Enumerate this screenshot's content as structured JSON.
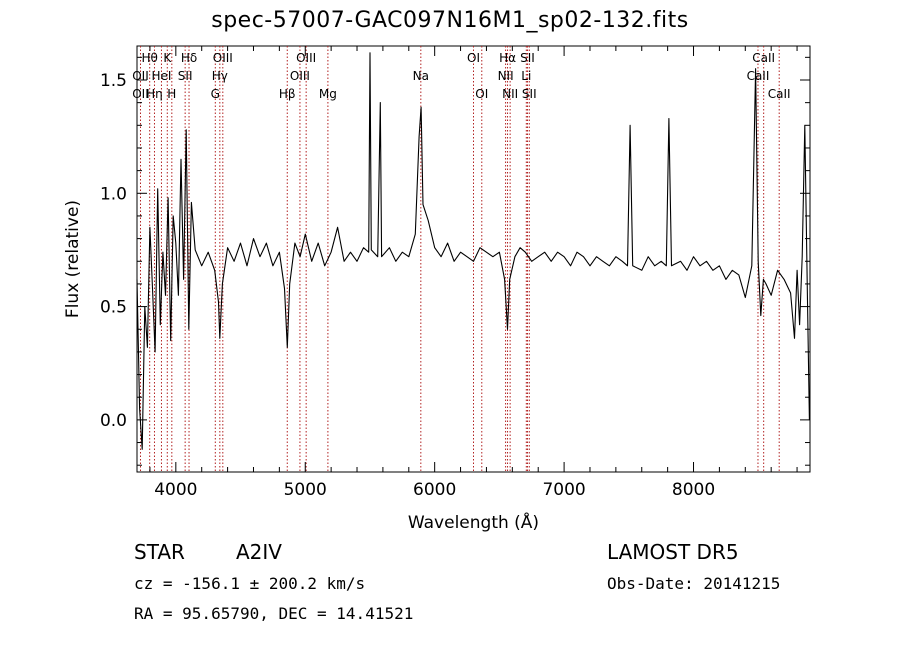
{
  "chart_data": {
    "type": "line",
    "title": "spec-57007-GAC097N16M1_sp02-132.fits",
    "xlabel": "Wavelength (Å)",
    "ylabel": "Flux (relative)",
    "xlim": [
      3700,
      8900
    ],
    "ylim": [
      -0.23,
      1.65
    ],
    "xticks": [
      4000,
      5000,
      6000,
      7000,
      8000
    ],
    "yticks": [
      0.0,
      0.5,
      1.0,
      1.5
    ],
    "xtick_labels": [
      "4000",
      "5000",
      "6000",
      "7000",
      "8000"
    ],
    "ytick_labels": [
      "0.0",
      "0.5",
      "1.0",
      "1.5"
    ],
    "grid": false,
    "series": [
      {
        "color": "#000000",
        "points": [
          [
            3700,
            0.62
          ],
          [
            3720,
            0.05
          ],
          [
            3740,
            -0.13
          ],
          [
            3760,
            0.5
          ],
          [
            3780,
            0.32
          ],
          [
            3800,
            0.85
          ],
          [
            3820,
            0.58
          ],
          [
            3840,
            0.3
          ],
          [
            3860,
            1.02
          ],
          [
            3880,
            0.42
          ],
          [
            3900,
            0.74
          ],
          [
            3920,
            0.55
          ],
          [
            3940,
            0.98
          ],
          [
            3960,
            0.35
          ],
          [
            3980,
            0.9
          ],
          [
            4000,
            0.78
          ],
          [
            4020,
            0.55
          ],
          [
            4040,
            1.15
          ],
          [
            4060,
            0.62
          ],
          [
            4080,
            1.28
          ],
          [
            4100,
            0.4
          ],
          [
            4120,
            0.96
          ],
          [
            4150,
            0.75
          ],
          [
            4200,
            0.68
          ],
          [
            4250,
            0.74
          ],
          [
            4300,
            0.66
          ],
          [
            4330,
            0.52
          ],
          [
            4340,
            0.36
          ],
          [
            4360,
            0.6
          ],
          [
            4400,
            0.76
          ],
          [
            4450,
            0.7
          ],
          [
            4500,
            0.78
          ],
          [
            4550,
            0.68
          ],
          [
            4600,
            0.8
          ],
          [
            4650,
            0.72
          ],
          [
            4700,
            0.78
          ],
          [
            4750,
            0.68
          ],
          [
            4800,
            0.74
          ],
          [
            4840,
            0.58
          ],
          [
            4861,
            0.32
          ],
          [
            4880,
            0.6
          ],
          [
            4920,
            0.78
          ],
          [
            4960,
            0.72
          ],
          [
            5000,
            0.82
          ],
          [
            5050,
            0.7
          ],
          [
            5100,
            0.78
          ],
          [
            5150,
            0.68
          ],
          [
            5200,
            0.74
          ],
          [
            5250,
            0.85
          ],
          [
            5300,
            0.7
          ],
          [
            5350,
            0.74
          ],
          [
            5400,
            0.7
          ],
          [
            5450,
            0.76
          ],
          [
            5490,
            0.74
          ],
          [
            5500,
            1.62
          ],
          [
            5510,
            0.75
          ],
          [
            5560,
            0.72
          ],
          [
            5580,
            1.4
          ],
          [
            5590,
            0.72
          ],
          [
            5650,
            0.76
          ],
          [
            5700,
            0.7
          ],
          [
            5750,
            0.74
          ],
          [
            5800,
            0.72
          ],
          [
            5850,
            0.82
          ],
          [
            5880,
            1.25
          ],
          [
            5895,
            1.38
          ],
          [
            5910,
            0.95
          ],
          [
            5950,
            0.88
          ],
          [
            6000,
            0.76
          ],
          [
            6050,
            0.72
          ],
          [
            6100,
            0.78
          ],
          [
            6150,
            0.7
          ],
          [
            6200,
            0.74
          ],
          [
            6250,
            0.72
          ],
          [
            6300,
            0.7
          ],
          [
            6350,
            0.76
          ],
          [
            6400,
            0.74
          ],
          [
            6450,
            0.72
          ],
          [
            6500,
            0.74
          ],
          [
            6540,
            0.62
          ],
          [
            6563,
            0.4
          ],
          [
            6580,
            0.62
          ],
          [
            6620,
            0.72
          ],
          [
            6660,
            0.76
          ],
          [
            6700,
            0.74
          ],
          [
            6750,
            0.7
          ],
          [
            6800,
            0.72
          ],
          [
            6850,
            0.74
          ],
          [
            6900,
            0.7
          ],
          [
            6950,
            0.74
          ],
          [
            7000,
            0.72
          ],
          [
            7050,
            0.68
          ],
          [
            7100,
            0.74
          ],
          [
            7150,
            0.72
          ],
          [
            7200,
            0.68
          ],
          [
            7250,
            0.72
          ],
          [
            7300,
            0.7
          ],
          [
            7350,
            0.68
          ],
          [
            7400,
            0.72
          ],
          [
            7450,
            0.7
          ],
          [
            7490,
            0.68
          ],
          [
            7510,
            1.3
          ],
          [
            7530,
            0.68
          ],
          [
            7600,
            0.66
          ],
          [
            7650,
            0.72
          ],
          [
            7700,
            0.68
          ],
          [
            7750,
            0.7
          ],
          [
            7790,
            0.68
          ],
          [
            7810,
            1.33
          ],
          [
            7830,
            0.68
          ],
          [
            7900,
            0.7
          ],
          [
            7950,
            0.66
          ],
          [
            8000,
            0.72
          ],
          [
            8050,
            0.68
          ],
          [
            8100,
            0.7
          ],
          [
            8150,
            0.66
          ],
          [
            8200,
            0.68
          ],
          [
            8250,
            0.62
          ],
          [
            8300,
            0.66
          ],
          [
            8350,
            0.64
          ],
          [
            8400,
            0.54
          ],
          [
            8450,
            0.68
          ],
          [
            8480,
            1.55
          ],
          [
            8500,
            0.7
          ],
          [
            8520,
            0.46
          ],
          [
            8540,
            0.62
          ],
          [
            8560,
            0.6
          ],
          [
            8600,
            0.55
          ],
          [
            8650,
            0.66
          ],
          [
            8700,
            0.62
          ],
          [
            8750,
            0.56
          ],
          [
            8780,
            0.36
          ],
          [
            8800,
            0.66
          ],
          [
            8820,
            0.42
          ],
          [
            8840,
            0.72
          ],
          [
            8860,
            1.3
          ],
          [
            8880,
            0.55
          ],
          [
            8895,
            0.0
          ]
        ]
      }
    ],
    "lines": [
      {
        "label": "Hθ",
        "wave": 3798,
        "row": 0
      },
      {
        "label": "OII",
        "wave": 3727,
        "row": 1
      },
      {
        "label": "OII",
        "wave": 3727,
        "row": 2
      },
      {
        "label": "K",
        "wave": 3934,
        "row": 0
      },
      {
        "label": "HeI",
        "wave": 3889,
        "row": 1
      },
      {
        "label": "Hη",
        "wave": 3835,
        "row": 2
      },
      {
        "label": "Hδ",
        "wave": 4102,
        "row": 0
      },
      {
        "label": "SII",
        "wave": 4072,
        "row": 1
      },
      {
        "label": "H",
        "wave": 3969,
        "row": 2
      },
      {
        "label": "OIII",
        "wave": 4363,
        "row": 0
      },
      {
        "label": "Hγ",
        "wave": 4340,
        "row": 1
      },
      {
        "label": "G",
        "wave": 4305,
        "row": 2
      },
      {
        "label": "OIII",
        "wave": 5007,
        "row": 0
      },
      {
        "label": "OIII",
        "wave": 4959,
        "row": 1
      },
      {
        "label": "Hβ",
        "wave": 4861,
        "row": 2
      },
      {
        "label": "Mg",
        "wave": 5175,
        "row": 2
      },
      {
        "label": "Na",
        "wave": 5893,
        "row": 1
      },
      {
        "label": "OI",
        "wave": 6300,
        "row": 0
      },
      {
        "label": "OI",
        "wave": 6364,
        "row": 2
      },
      {
        "label": "Hα",
        "wave": 6563,
        "row": 0
      },
      {
        "label": "NII",
        "wave": 6548,
        "row": 1
      },
      {
        "label": "NII",
        "wave": 6583,
        "row": 2
      },
      {
        "label": "SII",
        "wave": 6717,
        "row": 0
      },
      {
        "label": "Li",
        "wave": 6708,
        "row": 1
      },
      {
        "label": "SII",
        "wave": 6731,
        "row": 2
      },
      {
        "label": "CaII",
        "wave": 8542,
        "row": 0
      },
      {
        "label": "CaII",
        "wave": 8498,
        "row": 1
      },
      {
        "label": "CaII",
        "wave": 8662,
        "row": 2
      }
    ],
    "line_color": "#b22222"
  },
  "info": {
    "class": "STAR",
    "subclass": "A2IV",
    "survey": "LAMOST  DR5",
    "cz": "cz = -156.1 ± 200.2 km/s",
    "obs_date": "Obs-Date: 20141215",
    "radec": "RA =  95.65790, DEC =  14.41521"
  }
}
